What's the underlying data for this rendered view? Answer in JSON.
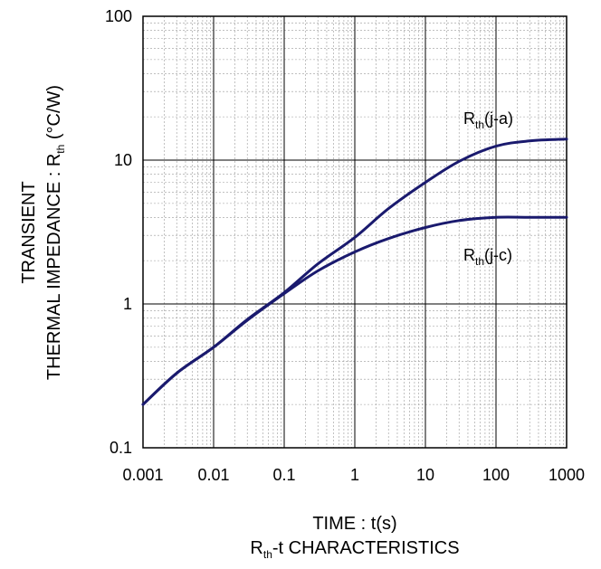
{
  "chart_data": {
    "type": "line",
    "x_scale": "log",
    "y_scale": "log",
    "xlim": [
      0.001,
      1000
    ],
    "ylim": [
      0.1,
      100
    ],
    "grid": true,
    "x_ticks": [
      "0.001",
      "0.01",
      "0.1",
      "1",
      "10",
      "100",
      "1000"
    ],
    "y_ticks": [
      "0.1",
      "1",
      "10",
      "100"
    ],
    "xlabel": "TIME : t(s)",
    "ylabel": {
      "line1": "TRANSIENT",
      "line2_pre": "THERMAL IMPEDANCE : R",
      "line2_sub": "th",
      "line2_post": " (°C/W)"
    },
    "caption": {
      "pre": "R",
      "sub": "th",
      "post": "-t CHARACTERISTICS"
    },
    "line_color": "#1a1a6e",
    "series": [
      {
        "label": {
          "pre": "R",
          "sub": "th",
          "post": "(j-a)"
        },
        "x": [
          0.001,
          0.003,
          0.01,
          0.03,
          0.1,
          0.3,
          1,
          3,
          10,
          30,
          100,
          300,
          1000
        ],
        "y": [
          0.2,
          0.33,
          0.5,
          0.78,
          1.2,
          1.9,
          2.9,
          4.6,
          7.0,
          9.8,
          12.5,
          13.6,
          14.0
        ]
      },
      {
        "label": {
          "pre": "R",
          "sub": "th",
          "post": "(j-c)"
        },
        "x": [
          0.001,
          0.003,
          0.01,
          0.03,
          0.1,
          0.3,
          1,
          3,
          10,
          30,
          100,
          300,
          1000
        ],
        "y": [
          0.2,
          0.33,
          0.5,
          0.77,
          1.18,
          1.7,
          2.3,
          2.85,
          3.4,
          3.8,
          4.0,
          4.0,
          4.0
        ]
      }
    ]
  }
}
